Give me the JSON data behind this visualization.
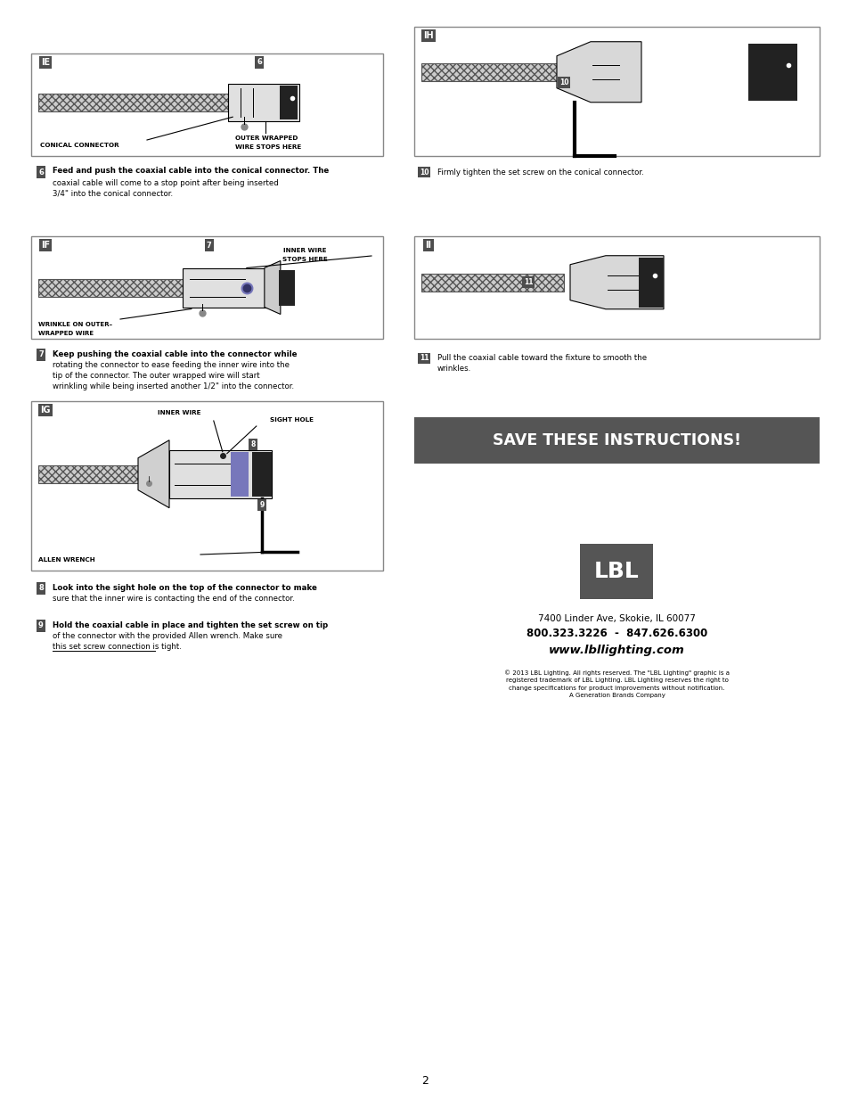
{
  "page_bg": "#ffffff",
  "page_width": 9.54,
  "page_height": 12.35,
  "dpi": 100,
  "step6_text1": "Feed and push the coaxial cable into the conical connector. The",
  "step6_text2": "coaxial cable will come to a stop point after being inserted",
  "step6_text3": "3/4\" into the conical connector.",
  "step7_text1": "Keep pushing the coaxial cable into the connector while",
  "step7_text2": "rotating the connector to ease feeding the inner wire into the",
  "step7_text3": "tip of the connector. The outer wrapped wire will start",
  "step7_text4": "wrinkling while being inserted another 1/2\" into the connector.",
  "step8_text1": "Look into the sight hole on the top of the connector to make",
  "step8_text2": "sure that the inner wire is contacting the end of the connector.",
  "step9_text1": "Hold the coaxial cable in place and tighten the set screw on tip",
  "step9_text2": "of the connector with the provided Allen wrench. Make sure",
  "step9_text3": "this set screw connection is tight.",
  "step10_text": "Firmly tighten the set screw on the conical connector.",
  "step11_text1": "Pull the coaxial cable toward the fixture to smooth the",
  "step11_text2": "wrinkles.",
  "save_text": "SAVE THESE INSTRUCTIONS!",
  "save_bg": "#555555",
  "save_fg": "#ffffff",
  "lbl_text": "LBL",
  "lbl_box_bg": "#555555",
  "lbl_box_fg": "#ffffff",
  "addr1": "7400 Linder Ave, Skokie, IL 60077",
  "addr2": "800.323.3226  -  847.626.6300",
  "addr3": "www.lbllighting.com",
  "copyright": "© 2013 LBL Lighting. All rights reserved. The \"LBL Lighting\" graphic is a\nregistered trademark of LBL Lighting. LBL Lighting reserves the right to\nchange specifications for product improvements without notification.\nA Generation Brands Company",
  "page_num": "2",
  "wire_hatch_color": "#b0b0b0",
  "purple_color": "#7777bb"
}
